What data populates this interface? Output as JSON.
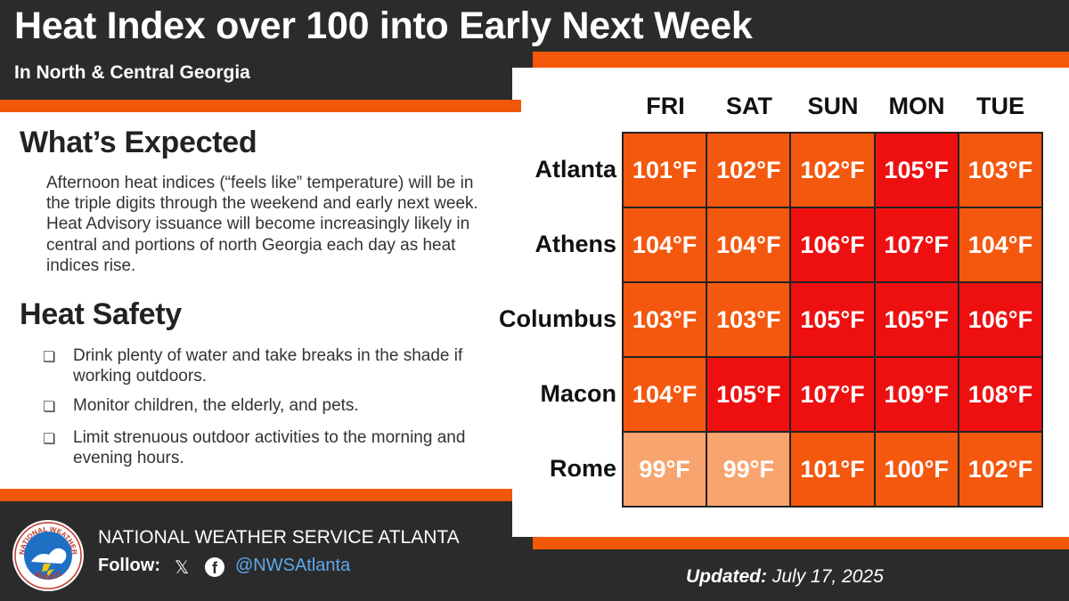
{
  "header": {
    "title": "Heat Index over 100 into Early Next Week",
    "subtitle": "In North & Central Georgia"
  },
  "expected": {
    "heading": "What’s Expected",
    "text": "Afternoon heat indices (“feels like” temperature) will be in the triple digits through the weekend and early next week. Heat Advisory issuance will become increasingly likely in central and portions of north Georgia each day as heat indices rise."
  },
  "safety": {
    "heading": "Heat Safety",
    "items": [
      "Drink plenty of water and take breaks in the shade if working outdoors.",
      "Monitor children, the elderly, and pets.",
      "Limit strenuous outdoor activities to the morning and evening hours."
    ]
  },
  "chart_data": {
    "type": "table",
    "columns": [
      "FRI",
      "SAT",
      "SUN",
      "MON",
      "TUE"
    ],
    "rows": [
      {
        "city": "Atlanta",
        "values": [
          "101°F",
          "102°F",
          "102°F",
          "105°F",
          "103°F"
        ],
        "colors": [
          "#f4580f",
          "#f4580f",
          "#f4580f",
          "#ee1010",
          "#f4580f"
        ]
      },
      {
        "city": "Athens",
        "values": [
          "104°F",
          "104°F",
          "106°F",
          "107°F",
          "104°F"
        ],
        "colors": [
          "#f4580f",
          "#f4580f",
          "#ee1010",
          "#ee1010",
          "#f4580f"
        ]
      },
      {
        "city": "Columbus",
        "values": [
          "103°F",
          "103°F",
          "105°F",
          "105°F",
          "106°F"
        ],
        "colors": [
          "#f4580f",
          "#f4580f",
          "#ee1010",
          "#ee1010",
          "#ee1010"
        ]
      },
      {
        "city": "Macon",
        "values": [
          "104°F",
          "105°F",
          "107°F",
          "109°F",
          "108°F"
        ],
        "colors": [
          "#f4580f",
          "#ee1010",
          "#ee1010",
          "#ee1010",
          "#ee1010"
        ]
      },
      {
        "city": "Rome",
        "values": [
          "99°F",
          "99°F",
          "101°F",
          "100°F",
          "102°F"
        ],
        "colors": [
          "#f8a46e",
          "#f8a46e",
          "#f4580f",
          "#f4580f",
          "#f4580f"
        ]
      }
    ]
  },
  "footer": {
    "office": "NATIONAL WEATHER SERVICE ATLANTA",
    "follow_label": "Follow:",
    "x_icon": "x-icon",
    "facebook_icon": "facebook-icon",
    "handle": "@NWSAtlanta",
    "updated_label": "Updated:",
    "updated_date": "July 17, 2025",
    "logo_text": "NATIONAL WEATHER SERVICE"
  },
  "colors": {
    "accent": "#f2570a",
    "background": "#2b2b2b",
    "hot": "#f4580f",
    "very_hot": "#ee1010",
    "warm": "#f8a46e",
    "handle": "#5fa8ec"
  }
}
